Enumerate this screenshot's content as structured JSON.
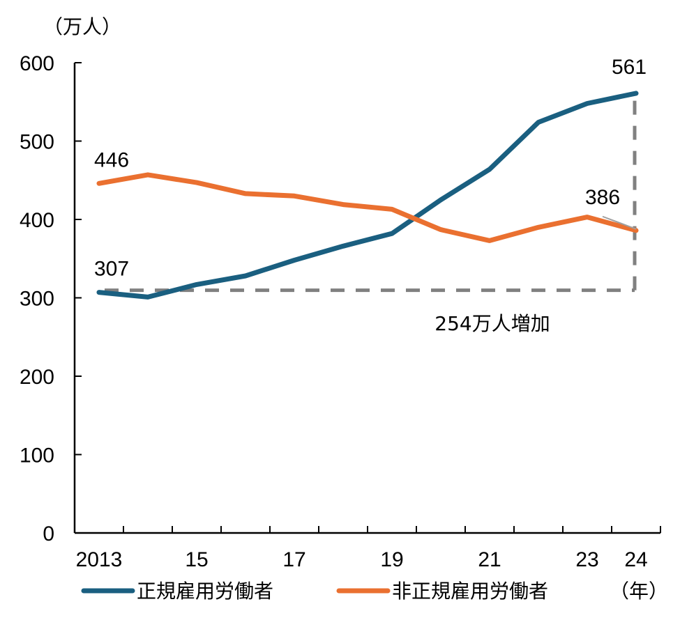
{
  "chart_data": {
    "type": "line",
    "title": "",
    "xlabel": "（年）",
    "ylabel": "（万人）",
    "ylim": [
      0,
      600
    ],
    "yticks": [
      0,
      100,
      200,
      300,
      400,
      500,
      600
    ],
    "x": [
      2013,
      2014,
      2015,
      2016,
      2017,
      2018,
      2019,
      2020,
      2021,
      2022,
      2023,
      2024
    ],
    "xtick_labels": [
      {
        "year": 2013,
        "label": "2013"
      },
      {
        "year": 2015,
        "label": "15"
      },
      {
        "year": 2017,
        "label": "17"
      },
      {
        "year": 2019,
        "label": "19"
      },
      {
        "year": 2021,
        "label": "21"
      },
      {
        "year": 2023,
        "label": "23"
      },
      {
        "year": 2024,
        "label": "24"
      }
    ],
    "grid": false,
    "legend_position": "bottom",
    "series": [
      {
        "name": "正規雇用労働者",
        "color": "#1a5f80",
        "values": [
          307,
          301,
          317,
          328,
          348,
          366,
          382,
          425,
          464,
          524,
          548,
          561
        ]
      },
      {
        "name": "非正規雇用労働者",
        "color": "#ea7030",
        "values": [
          446,
          457,
          447,
          433,
          430,
          419,
          413,
          387,
          373,
          390,
          403,
          386
        ]
      }
    ],
    "data_labels": [
      {
        "series": 0,
        "year": 2013,
        "text": "307"
      },
      {
        "series": 0,
        "year": 2024,
        "text": "561"
      },
      {
        "series": 1,
        "year": 2013,
        "text": "446"
      },
      {
        "series": 1,
        "year": 2024,
        "text": "386"
      }
    ],
    "annotation": {
      "text": "254万人増加",
      "from_value": 307,
      "to_value": 561,
      "line_color": "#808080"
    }
  }
}
